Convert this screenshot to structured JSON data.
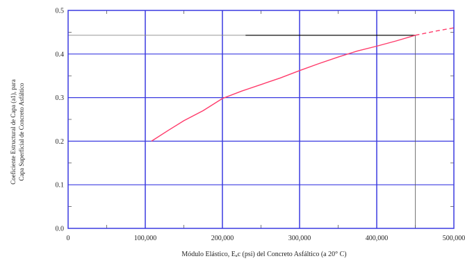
{
  "chart_data": {
    "type": "line",
    "xlabel": "Módulo Elástico, Eₐc (psi) del Concreto Asfáltico (a 20° C)",
    "ylabel_line1": "Coeficiente Estructural de Capa (a1), para",
    "ylabel_line2": "Capa Superficial de Concreto Asfáltico",
    "xlim": [
      0,
      500000
    ],
    "ylim": [
      0,
      0.5
    ],
    "x_ticks": [
      0,
      100000,
      200000,
      300000,
      400000,
      500000
    ],
    "x_tick_labels": [
      "0",
      "100,000",
      "200,000",
      "300,000",
      "400,000",
      "500,000"
    ],
    "y_ticks": [
      0,
      0.1,
      0.2,
      0.3,
      0.4,
      0.5
    ],
    "y_tick_labels": [
      "0.0",
      "0.1",
      "0.2",
      "0.3",
      "0.4",
      "0.5"
    ],
    "grid": true,
    "colors": {
      "curve": "#ff3b6b",
      "grid": "#3a3ae0",
      "reference": "#000000"
    },
    "series": [
      {
        "points": [
          [
            108000,
            0.2
          ],
          [
            130000,
            0.225
          ],
          [
            150000,
            0.247
          ],
          [
            175000,
            0.27
          ],
          [
            200000,
            0.298
          ],
          [
            225000,
            0.315
          ],
          [
            250000,
            0.33
          ],
          [
            275000,
            0.345
          ],
          [
            300000,
            0.362
          ],
          [
            325000,
            0.378
          ],
          [
            350000,
            0.393
          ],
          [
            375000,
            0.407
          ],
          [
            400000,
            0.418
          ],
          [
            425000,
            0.43
          ],
          [
            450000,
            0.443
          ]
        ],
        "extrapolated": [
          [
            450000,
            0.443
          ],
          [
            475000,
            0.452
          ],
          [
            500000,
            0.46
          ]
        ]
      }
    ],
    "reference": {
      "x": 450000,
      "y": 0.443,
      "h_line_from_x": 230000
    }
  }
}
